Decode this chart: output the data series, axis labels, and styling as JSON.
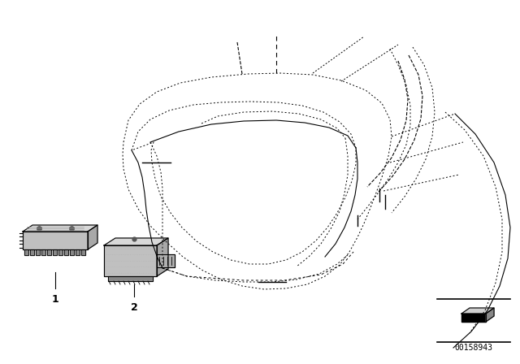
{
  "bg_color": "#ffffff",
  "fig_width": 6.4,
  "fig_height": 4.48,
  "dpi": 100,
  "part_number": "00158943",
  "label1": "1",
  "label2": "2"
}
